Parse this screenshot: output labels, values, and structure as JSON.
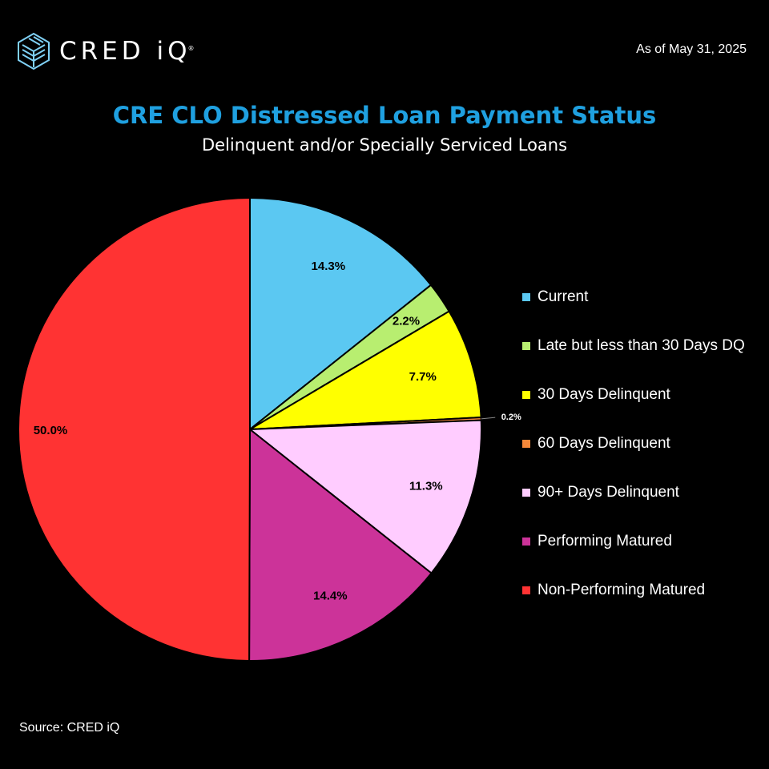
{
  "header": {
    "brand": "CRED iQ",
    "brand_mark": "®",
    "as_of": "As of May 31, 2025"
  },
  "title": "CRE CLO Distressed Loan Payment Status",
  "subtitle": "Delinquent and/or Specially Serviced Loans",
  "source": "Source: CRED iQ",
  "colors": {
    "title": "#1fa0e0",
    "background": "#000000",
    "slice_border": "#000000"
  },
  "chart_data": {
    "type": "pie",
    "title": "CRE CLO Distressed Loan Payment Status",
    "subtitle": "Delinquent and/or Specially Serviced Loans",
    "legend_position": "right",
    "slices": [
      {
        "name": "Current",
        "value": 14.3,
        "label": "14.3%",
        "color": "#5bc8f2"
      },
      {
        "name": "Late but less than 30 Days DQ",
        "value": 2.2,
        "label": "2.2%",
        "color": "#b8ee70"
      },
      {
        "name": "30 Days Delinquent",
        "value": 7.7,
        "label": "7.7%",
        "color": "#ffff00"
      },
      {
        "name": "60 Days Delinquent",
        "value": 0.2,
        "label": "0.2%",
        "color": "#f5883a"
      },
      {
        "name": "90+ Days Delinquent",
        "value": 11.3,
        "label": "11.3%",
        "color": "#ffccff"
      },
      {
        "name": "Performing Matured",
        "value": 14.4,
        "label": "14.4%",
        "color": "#cc3399"
      },
      {
        "name": "Non-Performing Matured",
        "value": 50.0,
        "label": "50.0%",
        "color": "#ff3333"
      }
    ]
  }
}
